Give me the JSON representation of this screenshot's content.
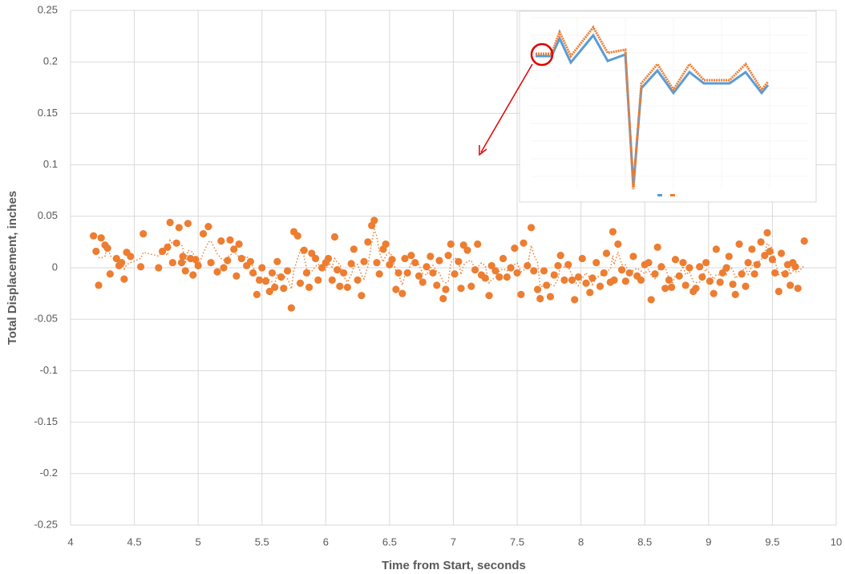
{
  "chart_data": {
    "type": "scatter",
    "x_label": "Time from Start, seconds",
    "y_label": "Total Displacement, inches",
    "xlim": [
      4,
      10
    ],
    "xticks": [
      4,
      4.5,
      5,
      5.5,
      6,
      6.5,
      7,
      7.5,
      8,
      8.5,
      9,
      9.5,
      10
    ],
    "ylim": [
      -0.25,
      0.25
    ],
    "yticks": [
      -0.25,
      -0.2,
      -0.15,
      -0.1,
      -0.05,
      0,
      0.05,
      0.1,
      0.15,
      0.2,
      0.25
    ],
    "grid": true,
    "color": "#ed7d31",
    "trendline": {
      "period": 3
    },
    "x": [
      4.18,
      4.2,
      4.22,
      4.24,
      4.27,
      4.29,
      4.31,
      4.36,
      4.38,
      4.4,
      4.42,
      4.44,
      4.47,
      4.55,
      4.57,
      4.69,
      4.72,
      4.76,
      4.78,
      4.8,
      4.83,
      4.85,
      4.87,
      4.88,
      4.9,
      4.92,
      4.94,
      4.96,
      4.98,
      5,
      5.04,
      5.08,
      5.1,
      5.15,
      5.18,
      5.2,
      5.23,
      5.25,
      5.28,
      5.3,
      5.32,
      5.34,
      5.38,
      5.41,
      5.43,
      5.46,
      5.48,
      5.5,
      5.53,
      5.56,
      5.58,
      5.6,
      5.62,
      5.65,
      5.67,
      5.7,
      5.73,
      5.75,
      5.78,
      5.8,
      5.83,
      5.85,
      5.87,
      5.89,
      5.92,
      5.94,
      5.97,
      6,
      6.02,
      6.05,
      6.07,
      6.09,
      6.11,
      6.14,
      6.17,
      6.2,
      6.22,
      6.25,
      6.28,
      6.3,
      6.33,
      6.36,
      6.38,
      6.4,
      6.42,
      6.45,
      6.47,
      6.5,
      6.52,
      6.55,
      6.57,
      6.6,
      6.62,
      6.64,
      6.67,
      6.7,
      6.73,
      6.76,
      6.79,
      6.82,
      6.84,
      6.87,
      6.89,
      6.92,
      6.94,
      6.96,
      6.98,
      7.01,
      7.04,
      7.06,
      7.08,
      7.11,
      7.14,
      7.17,
      7.19,
      7.22,
      7.25,
      7.28,
      7.3,
      7.33,
      7.36,
      7.39,
      7.42,
      7.45,
      7.48,
      7.5,
      7.53,
      7.55,
      7.58,
      7.61,
      7.63,
      7.66,
      7.68,
      7.71,
      7.73,
      7.76,
      7.79,
      7.82,
      7.84,
      7.87,
      7.9,
      7.93,
      7.95,
      7.98,
      8.01,
      8.04,
      8.07,
      8.09,
      8.12,
      8.15,
      8.18,
      8.2,
      8.23,
      8.25,
      8.26,
      8.29,
      8.32,
      8.35,
      8.38,
      8.41,
      8.44,
      8.47,
      8.5,
      8.53,
      8.55,
      8.58,
      8.6,
      8.63,
      8.66,
      8.69,
      8.71,
      8.74,
      8.77,
      8.8,
      8.82,
      8.85,
      8.88,
      8.9,
      8.93,
      8.95,
      8.98,
      9.01,
      9.04,
      9.06,
      9.09,
      9.11,
      9.14,
      9.16,
      9.19,
      9.21,
      9.24,
      9.26,
      9.29,
      9.31,
      9.34,
      9.36,
      9.38,
      9.41,
      9.44,
      9.46,
      9.48,
      9.5,
      9.52,
      9.55,
      9.57,
      9.6,
      9.62,
      9.64,
      9.66,
      9.68,
      9.7,
      9.75
    ],
    "values": [
      0.031,
      0.016,
      -0.017,
      0.029,
      0.022,
      0.019,
      -0.006,
      0.009,
      0.002,
      0.005,
      -0.011,
      0.015,
      0.011,
      0.001,
      0.033,
      0,
      0.016,
      0.02,
      0.044,
      0.005,
      0.024,
      0.039,
      0.005,
      0.011,
      -0.003,
      0.043,
      0.009,
      -0.007,
      0.008,
      0.002,
      0.033,
      0.04,
      0.005,
      -0.004,
      0.026,
      0,
      0.007,
      0.027,
      0.018,
      -0.008,
      0.023,
      0.009,
      0.002,
      0.006,
      -0.005,
      -0.026,
      -0.012,
      0,
      -0.013,
      -0.023,
      -0.005,
      -0.019,
      0.006,
      -0.009,
      -0.02,
      -0.003,
      -0.039,
      0.035,
      0.031,
      -0.015,
      0.017,
      -0.005,
      -0.019,
      0.014,
      0.009,
      -0.012,
      0,
      0.005,
      0.009,
      -0.012,
      0.03,
      -0.002,
      -0.018,
      -0.005,
      -0.019,
      0.004,
      0.018,
      -0.012,
      -0.027,
      0.006,
      0.025,
      0.041,
      0.046,
      0.005,
      -0.006,
      0.018,
      0.023,
      0.003,
      0.008,
      -0.021,
      -0.005,
      -0.025,
      0.009,
      -0.005,
      0.012,
      0.005,
      -0.008,
      -0.014,
      0.001,
      0.011,
      -0.005,
      -0.017,
      0.007,
      -0.03,
      -0.021,
      0.012,
      0.023,
      -0.006,
      0.006,
      -0.02,
      0.022,
      0.017,
      -0.018,
      -0.002,
      0.023,
      -0.007,
      -0.01,
      -0.027,
      0.002,
      -0.003,
      -0.009,
      0.009,
      -0.009,
      0,
      0.019,
      -0.005,
      -0.026,
      0.024,
      0.002,
      0.039,
      -0.003,
      -0.021,
      -0.03,
      -0.003,
      -0.017,
      -0.028,
      -0.007,
      0.002,
      0.012,
      -0.012,
      0.003,
      -0.012,
      -0.031,
      -0.009,
      0.009,
      -0.015,
      -0.024,
      -0.01,
      0.005,
      -0.018,
      -0.005,
      0.014,
      -0.014,
      0.035,
      -0.012,
      0.023,
      -0.002,
      -0.013,
      -0.005,
      0.011,
      -0.008,
      -0.012,
      0.003,
      0.005,
      -0.031,
      -0.006,
      0.02,
      0.001,
      -0.02,
      -0.012,
      -0.019,
      0.008,
      -0.008,
      0.005,
      -0.017,
      0,
      -0.023,
      -0.02,
      0.001,
      -0.009,
      0.005,
      -0.013,
      -0.025,
      0.018,
      -0.014,
      -0.005,
      0,
      0.011,
      -0.016,
      -0.026,
      0.023,
      -0.006,
      -0.018,
      0.005,
      0.018,
      -0.006,
      0.003,
      0.025,
      0.012,
      0.034,
      0.016,
      0.008,
      -0.005,
      -0.023,
      0.014,
      -0.006,
      0.003,
      -0.017,
      0.005,
      0.001,
      -0.02,
      0.026
    ]
  }
}
